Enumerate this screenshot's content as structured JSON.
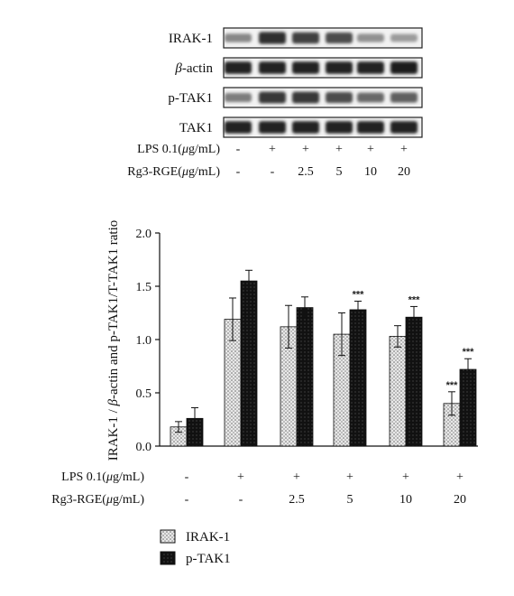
{
  "blot": {
    "rows": [
      {
        "label": "IRAK-1",
        "intensity": [
          0.45,
          0.9,
          0.8,
          0.75,
          0.4,
          0.35
        ]
      },
      {
        "label": "β-actin",
        "italic_prefix": "β",
        "suffix": "-actin",
        "intensity": [
          0.95,
          0.95,
          0.95,
          0.95,
          0.95,
          0.98
        ]
      },
      {
        "label": "p-TAK1",
        "intensity": [
          0.5,
          0.85,
          0.85,
          0.75,
          0.6,
          0.65
        ]
      },
      {
        "label": "TAK1",
        "intensity": [
          0.95,
          0.95,
          0.95,
          0.95,
          0.95,
          0.95
        ]
      }
    ],
    "conditions": [
      {
        "label_pre": "LPS 0.1(",
        "label_unit": "μ",
        "label_post": "g/mL)",
        "values": [
          "-",
          "+",
          "+",
          "+",
          "+",
          "+"
        ]
      },
      {
        "label_pre": "Rg3-RGE(",
        "label_unit": "μ",
        "label_post": "g/mL)",
        "values": [
          "-",
          "-",
          "2.5",
          "5",
          "10",
          "20"
        ]
      }
    ]
  },
  "chart_data": {
    "type": "bar",
    "ylabel_pre": "IRAK-1 / ",
    "ylabel_italic": "β",
    "ylabel_post": "-actin and p-TAK1/T-TAK1 ratio",
    "ylim": [
      0,
      2.0
    ],
    "yticks": [
      "0.0",
      "0.5",
      "1.0",
      "1.5",
      "2.0"
    ],
    "series": [
      {
        "name": "IRAK-1",
        "values": [
          0.18,
          1.19,
          1.12,
          1.05,
          1.03,
          0.4
        ],
        "errors": [
          0.05,
          0.2,
          0.2,
          0.2,
          0.1,
          0.11
        ],
        "significance": [
          "",
          "",
          "",
          "",
          "",
          "***"
        ]
      },
      {
        "name": "p-TAK1",
        "values": [
          0.26,
          1.55,
          1.3,
          1.28,
          1.21,
          0.72
        ],
        "errors": [
          0.1,
          0.1,
          0.1,
          0.08,
          0.1,
          0.1
        ],
        "significance": [
          "",
          "",
          "",
          "***",
          "***",
          "***"
        ]
      }
    ],
    "conditions": [
      {
        "label_pre": "LPS 0.1(",
        "label_unit": "μ",
        "label_post": "g/mL)",
        "values": [
          "-",
          "+",
          "+",
          "+",
          "+",
          "+"
        ]
      },
      {
        "label_pre": "Rg3-RGE(",
        "label_unit": "μ",
        "label_post": "g/mL)",
        "values": [
          "-",
          "-",
          "2.5",
          "5",
          "10",
          "20"
        ]
      }
    ],
    "legend": "bottom-left",
    "grid": false
  }
}
